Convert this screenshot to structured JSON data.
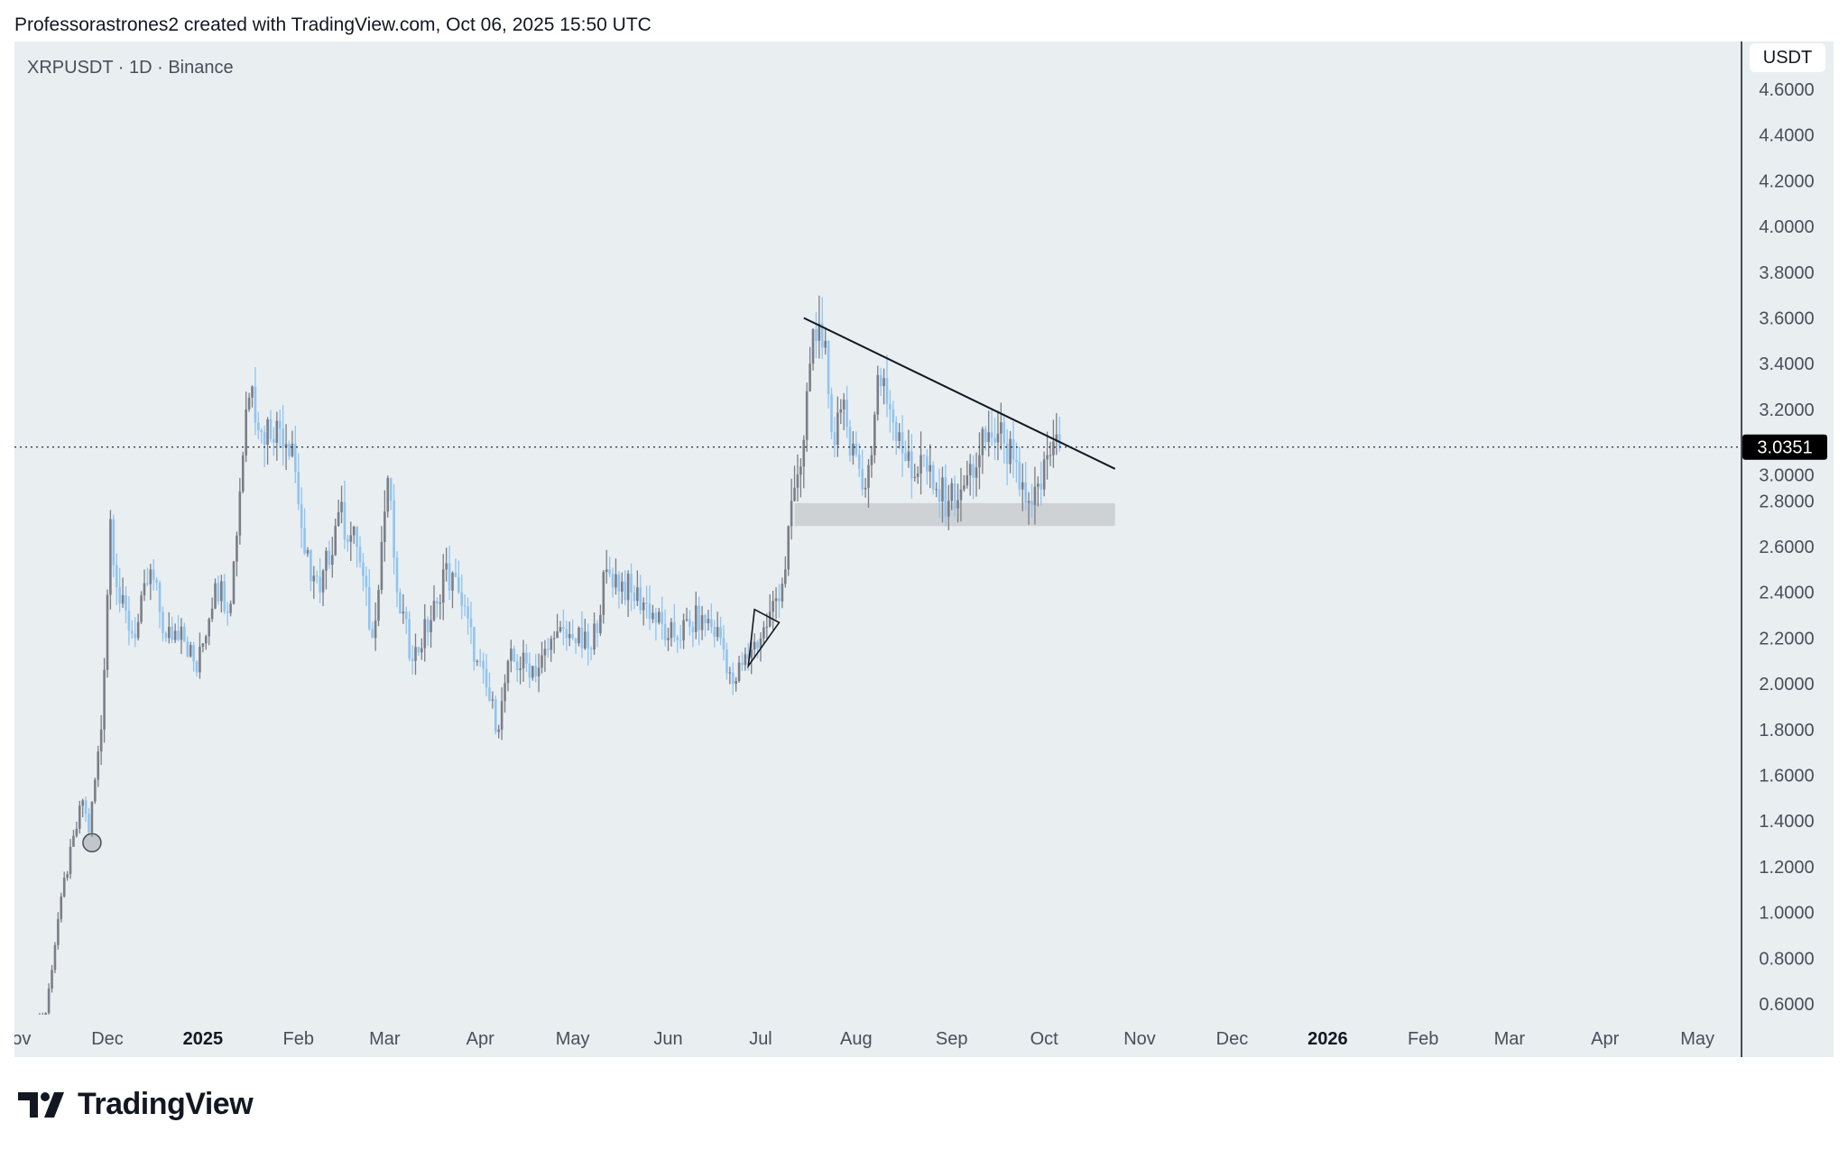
{
  "header": {
    "attribution": "Professorastrones2 created with TradingView.com, Oct 06, 2025 15:50 UTC"
  },
  "chart": {
    "symbol": "XRPUSDT · 1D · Binance",
    "currency": "USDT",
    "brand": "TradingView"
  },
  "colors": {
    "background": "#e9eef1",
    "up": "#7b7e87",
    "down": "#90c4f0",
    "drawing": "#131722",
    "zone": "#c9ccd0",
    "last_price_bg": "#000000"
  },
  "chart_data": {
    "type": "candlestick",
    "title": "",
    "ylim": [
      0.55,
      4.65
    ],
    "xlim": [
      "2024-10-29",
      "2026-05-31"
    ],
    "grid": false,
    "y_ticks": [
      "4.6000",
      "4.4000",
      "4.2000",
      "4.0000",
      "3.8000",
      "3.6000",
      "3.4000",
      "3.2000",
      "3.0000",
      "2.8000",
      "2.6000",
      "2.4000",
      "2.2000",
      "2.0000",
      "1.8000",
      "1.6000",
      "1.4000",
      "1.2000",
      "1.0000",
      "0.8000",
      "0.6000"
    ],
    "x_ticks": [
      {
        "label": "Nov",
        "date": "2024-11-01",
        "bold": false
      },
      {
        "label": "Dec",
        "date": "2024-12-01",
        "bold": false
      },
      {
        "label": "2025",
        "date": "2025-01-01",
        "bold": true
      },
      {
        "label": "Feb",
        "date": "2025-02-01",
        "bold": false
      },
      {
        "label": "Mar",
        "date": "2025-03-01",
        "bold": false
      },
      {
        "label": "Apr",
        "date": "2025-04-01",
        "bold": false
      },
      {
        "label": "May",
        "date": "2025-05-01",
        "bold": false
      },
      {
        "label": "Jun",
        "date": "2025-06-01",
        "bold": false
      },
      {
        "label": "Jul",
        "date": "2025-07-01",
        "bold": false
      },
      {
        "label": "Aug",
        "date": "2025-08-01",
        "bold": false
      },
      {
        "label": "Sep",
        "date": "2025-09-01",
        "bold": false
      },
      {
        "label": "Oct",
        "date": "2025-10-01",
        "bold": false
      },
      {
        "label": "Nov",
        "date": "2025-11-01",
        "bold": false
      },
      {
        "label": "Dec",
        "date": "2025-12-01",
        "bold": false
      },
      {
        "label": "2026",
        "date": "2026-01-01",
        "bold": true
      },
      {
        "label": "Feb",
        "date": "2026-02-01",
        "bold": false
      },
      {
        "label": "Mar",
        "date": "2026-03-01",
        "bold": false
      },
      {
        "label": "Apr",
        "date": "2026-04-01",
        "bold": false
      },
      {
        "label": "May",
        "date": "2026-05-01",
        "bold": false
      }
    ],
    "last_price": "3.0351",
    "close_path": [
      [
        "2024-11-05",
        0.5
      ],
      [
        "2024-11-11",
        0.56
      ],
      [
        "2024-11-16",
        1.07
      ],
      [
        "2024-11-23",
        1.49
      ],
      [
        "2024-11-25",
        1.35
      ],
      [
        "2024-11-29",
        1.8
      ],
      [
        "2024-12-02",
        2.72
      ],
      [
        "2024-12-05",
        2.35
      ],
      [
        "2024-12-10",
        2.2
      ],
      [
        "2024-12-15",
        2.5
      ],
      [
        "2024-12-20",
        2.2
      ],
      [
        "2024-12-25",
        2.25
      ],
      [
        "2024-12-30",
        2.05
      ],
      [
        "2025-01-05",
        2.44
      ],
      [
        "2025-01-10",
        2.35
      ],
      [
        "2025-01-15",
        3.2
      ],
      [
        "2025-01-17",
        3.3
      ],
      [
        "2025-01-20",
        3.1
      ],
      [
        "2025-01-25",
        3.15
      ],
      [
        "2025-01-30",
        3.05
      ],
      [
        "2025-02-03",
        2.57
      ],
      [
        "2025-02-08",
        2.4
      ],
      [
        "2025-02-14",
        2.75
      ],
      [
        "2025-02-20",
        2.6
      ],
      [
        "2025-02-25",
        2.2
      ],
      [
        "2025-03-02",
        2.9
      ],
      [
        "2025-03-05",
        2.4
      ],
      [
        "2025-03-10",
        2.1
      ],
      [
        "2025-03-18",
        2.35
      ],
      [
        "2025-03-20",
        2.5
      ],
      [
        "2025-03-25",
        2.4
      ],
      [
        "2025-03-31",
        2.1
      ],
      [
        "2025-04-07",
        1.8
      ],
      [
        "2025-04-10",
        2.1
      ],
      [
        "2025-04-20",
        2.07
      ],
      [
        "2025-04-25",
        2.2
      ],
      [
        "2025-05-01",
        2.2
      ],
      [
        "2025-05-07",
        2.15
      ],
      [
        "2025-05-12",
        2.5
      ],
      [
        "2025-05-20",
        2.4
      ],
      [
        "2025-05-25",
        2.35
      ],
      [
        "2025-06-01",
        2.2
      ],
      [
        "2025-06-08",
        2.25
      ],
      [
        "2025-06-12",
        2.3
      ],
      [
        "2025-06-18",
        2.2
      ],
      [
        "2025-06-22",
        2.0
      ],
      [
        "2025-06-28",
        2.15
      ],
      [
        "2025-07-03",
        2.25
      ],
      [
        "2025-07-09",
        2.5
      ],
      [
        "2025-07-11",
        2.8
      ],
      [
        "2025-07-14",
        2.95
      ],
      [
        "2025-07-17",
        3.4
      ],
      [
        "2025-07-19",
        3.5
      ],
      [
        "2025-07-22",
        3.5
      ],
      [
        "2025-07-24",
        3.1
      ],
      [
        "2025-07-27",
        3.2
      ],
      [
        "2025-07-31",
        3.05
      ],
      [
        "2025-08-03",
        2.85
      ],
      [
        "2025-08-06",
        3.0
      ],
      [
        "2025-08-08",
        3.35
      ],
      [
        "2025-08-12",
        3.2
      ],
      [
        "2025-08-15",
        3.1
      ],
      [
        "2025-08-19",
        2.9
      ],
      [
        "2025-08-22",
        3.0
      ],
      [
        "2025-08-26",
        2.85
      ],
      [
        "2025-08-31",
        2.8
      ],
      [
        "2025-09-04",
        2.85
      ],
      [
        "2025-09-10",
        3.0
      ],
      [
        "2025-09-13",
        3.1
      ],
      [
        "2025-09-18",
        3.05
      ],
      [
        "2025-09-21",
        2.98
      ],
      [
        "2025-09-23",
        2.85
      ],
      [
        "2025-09-26",
        2.8
      ],
      [
        "2025-09-30",
        2.85
      ],
      [
        "2025-10-02",
        3.0
      ],
      [
        "2025-10-03",
        3.0
      ],
      [
        "2025-10-06",
        3.035
      ]
    ],
    "drawings": {
      "trendline": [
        [
          "2025-07-15",
          3.6
        ],
        [
          "2025-10-24",
          2.94
        ]
      ],
      "support_zone": {
        "from": "2025-07-12",
        "to": "2025-10-24",
        "low": 2.69,
        "high": 2.79
      },
      "triangle": [
        [
          "2025-06-29",
          2.325
        ],
        [
          "2025-07-07",
          2.268
        ],
        [
          "2025-06-27",
          2.078
        ]
      ],
      "circle_marker": [
        "2024-11-26",
        1.305
      ]
    }
  }
}
